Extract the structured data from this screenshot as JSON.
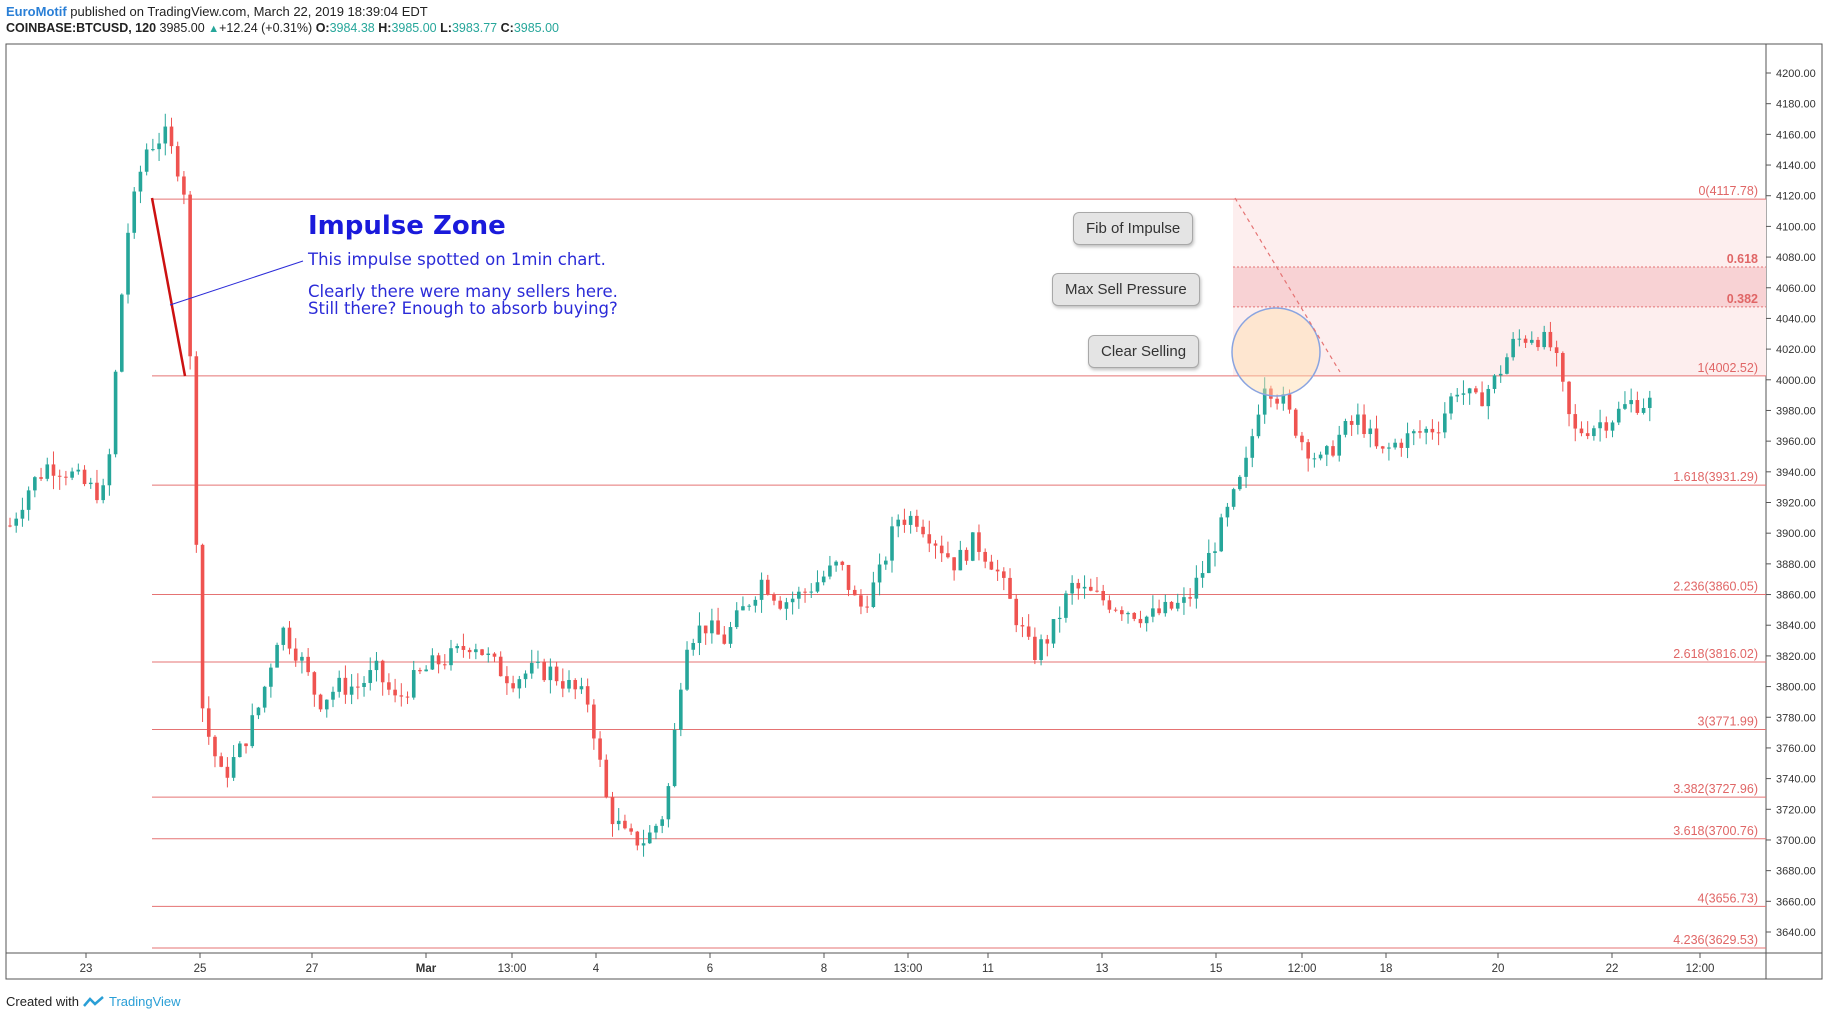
{
  "header": {
    "author": "EuroMotif",
    "published": " published on TradingView.com, March 22, 2019 18:39:04 EDT",
    "symbol": "COINBASE:BTCUSD, 120",
    "last": "3985.00",
    "change": "+12.24 (+0.31%)",
    "o_label": "O:",
    "o": "3984.38",
    "h_label": "H:",
    "h": "3985.00",
    "l_label": "L:",
    "l": "3983.77",
    "c_label": "C:",
    "c": "3985.00"
  },
  "footer": {
    "created_with": "Created with",
    "brand": "TradingView"
  },
  "annotation": {
    "title": "Impulse Zone",
    "line1": "This impulse spotted on 1min chart.",
    "line2": "Clearly there were many sellers here.",
    "line3": "Still there?  Enough to absorb buying?"
  },
  "callouts": {
    "fib_of_impulse": "Fib of Impulse",
    "max_sell_pressure": "Max Sell Pressure",
    "clear_selling": "Clear Selling"
  },
  "colors": {
    "up": "#26a69a",
    "down": "#ef5350",
    "fib_line": "#e57373",
    "fib_label": "#e06666",
    "zone_light": "#fdeeee",
    "zone_dark": "#f8d2d4",
    "annotation_blue": "#1a1adb"
  },
  "chart_data": {
    "type": "candlestick",
    "symbol": "COINBASE:BTCUSD",
    "timeframe": "120",
    "ylim": [
      3625,
      4220
    ],
    "y_ticks": [
      3640,
      3660,
      3680,
      3700,
      3720,
      3740,
      3760,
      3780,
      3800,
      3820,
      3840,
      3860,
      3880,
      3900,
      3920,
      3940,
      3960,
      3980,
      4000,
      4020,
      4040,
      4060,
      4080,
      4100,
      4120,
      4140,
      4160,
      4180,
      4200
    ],
    "x_ticks": [
      "23",
      "25",
      "27",
      "Mar",
      "13:00",
      "4",
      "6",
      "8",
      "13:00",
      "11",
      "13",
      "15",
      "12:00",
      "18",
      "20",
      "22",
      "12:00"
    ],
    "fib_levels": [
      {
        "label": "0(4117.78)",
        "value": 4117.78
      },
      {
        "label": "0.618",
        "value": 4073.5
      },
      {
        "label": "0.382",
        "value": 4047.5
      },
      {
        "label": "1(4002.52)",
        "value": 4002.52
      },
      {
        "label": "1.618(3931.29)",
        "value": 3931.29
      },
      {
        "label": "2.236(3860.05)",
        "value": 3860.05
      },
      {
        "label": "2.618(3816.02)",
        "value": 3816.02
      },
      {
        "label": "3(3771.99)",
        "value": 3771.99
      },
      {
        "label": "3.382(3727.96)",
        "value": 3727.96
      },
      {
        "label": "3.618(3700.76)",
        "value": 3700.76
      },
      {
        "label": "4(3656.73)",
        "value": 3656.73
      },
      {
        "label": "4.236(3629.53)",
        "value": 3629.53
      }
    ],
    "price_path": [
      [
        "Feb 22",
        3905
      ],
      [
        "Feb 22",
        3930
      ],
      [
        "Feb 22",
        3945
      ],
      [
        "Feb 22",
        3940
      ],
      [
        "Feb 23",
        3930
      ],
      [
        "Feb 23",
        3925
      ],
      [
        "Feb 23",
        4090
      ],
      [
        "Feb 23",
        4150
      ],
      [
        "Feb 24",
        4160
      ],
      [
        "Feb 24",
        4130
      ],
      [
        "Feb 24",
        3780
      ],
      [
        "Feb 24",
        3740
      ],
      [
        "Feb 25",
        3760
      ],
      [
        "Feb 25",
        3790
      ],
      [
        "Feb 25",
        3840
      ],
      [
        "Feb 26",
        3820
      ],
      [
        "Feb 26",
        3790
      ],
      [
        "Feb 26",
        3800
      ],
      [
        "Feb 27",
        3800
      ],
      [
        "Feb 27",
        3810
      ],
      [
        "Feb 27",
        3790
      ],
      [
        "Feb 28",
        3805
      ],
      [
        "Feb 28",
        3815
      ],
      [
        "Mar 1",
        3820
      ],
      [
        "Mar 1",
        3830
      ],
      [
        "Mar 1",
        3815
      ],
      [
        "Mar 2",
        3805
      ],
      [
        "Mar 2",
        3810
      ],
      [
        "Mar 3",
        3810
      ],
      [
        "Mar 3",
        3800
      ],
      [
        "Mar 4",
        3790
      ],
      [
        "Mar 4",
        3720
      ],
      [
        "Mar 4",
        3700
      ],
      [
        "Mar 5",
        3700
      ],
      [
        "Mar 5",
        3720
      ],
      [
        "Mar 5",
        3830
      ],
      [
        "Mar 6",
        3840
      ],
      [
        "Mar 6",
        3830
      ],
      [
        "Mar 6",
        3850
      ],
      [
        "Mar 7",
        3870
      ],
      [
        "Mar 7",
        3855
      ],
      [
        "Mar 7",
        3860
      ],
      [
        "Mar 8",
        3870
      ],
      [
        "Mar 8",
        3880
      ],
      [
        "Mar 8",
        3850
      ],
      [
        "Mar 9",
        3870
      ],
      [
        "Mar 9",
        3910
      ],
      [
        "Mar 10",
        3910
      ],
      [
        "Mar 10",
        3895
      ],
      [
        "Mar 10",
        3880
      ],
      [
        "Mar 11",
        3895
      ],
      [
        "Mar 11",
        3880
      ],
      [
        "Mar 11",
        3850
      ],
      [
        "Mar 12",
        3820
      ],
      [
        "Mar 12",
        3835
      ],
      [
        "Mar 12",
        3865
      ],
      [
        "Mar 13",
        3860
      ],
      [
        "Mar 13",
        3855
      ],
      [
        "Mar 13",
        3850
      ],
      [
        "Mar 14",
        3845
      ],
      [
        "Mar 14",
        3850
      ],
      [
        "Mar 15",
        3855
      ],
      [
        "Mar 15",
        3880
      ],
      [
        "Mar 15",
        3910
      ],
      [
        "Mar 16",
        3940
      ],
      [
        "Mar 16",
        4000
      ],
      [
        "Mar 16",
        3985
      ],
      [
        "Mar 17",
        3960
      ],
      [
        "Mar 17",
        3945
      ],
      [
        "Mar 17",
        3965
      ],
      [
        "Mar 18",
        3975
      ],
      [
        "Mar 18",
        3950
      ],
      [
        "Mar 18",
        3960
      ],
      [
        "Mar 19",
        3965
      ],
      [
        "Mar 19",
        3970
      ],
      [
        "Mar 19",
        3995
      ],
      [
        "Mar 20",
        3985
      ],
      [
        "Mar 20",
        4000
      ],
      [
        "Mar 20",
        4025
      ],
      [
        "Mar 21",
        4030
      ],
      [
        "Mar 21",
        4020
      ],
      [
        "Mar 21",
        3965
      ],
      [
        "Mar 21",
        3970
      ],
      [
        "Mar 22",
        3975
      ],
      [
        "Mar 22",
        3985
      ],
      [
        "Mar 22",
        3985
      ]
    ]
  }
}
